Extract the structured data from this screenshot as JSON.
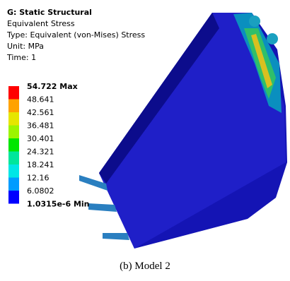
{
  "header": {
    "title": "G: Static Structural",
    "lines": [
      "Equivalent Stress",
      "Type: Equivalent (von-Mises) Stress",
      "Unit: MPa",
      "Time: 1"
    ]
  },
  "legend": {
    "labels": [
      "54.722 Max",
      "48.641",
      "42.561",
      "36.481",
      "30.401",
      "24.321",
      "18.241",
      "12.16",
      "6.0802",
      "1.0315e-6 Min"
    ],
    "colors": [
      "#ff0000",
      "#ffa200",
      "#e6e600",
      "#9cf500",
      "#00e600",
      "#00e69c",
      "#00e6e6",
      "#009cff",
      "#0000ff"
    ]
  },
  "caption": "(b)  Model 2"
}
